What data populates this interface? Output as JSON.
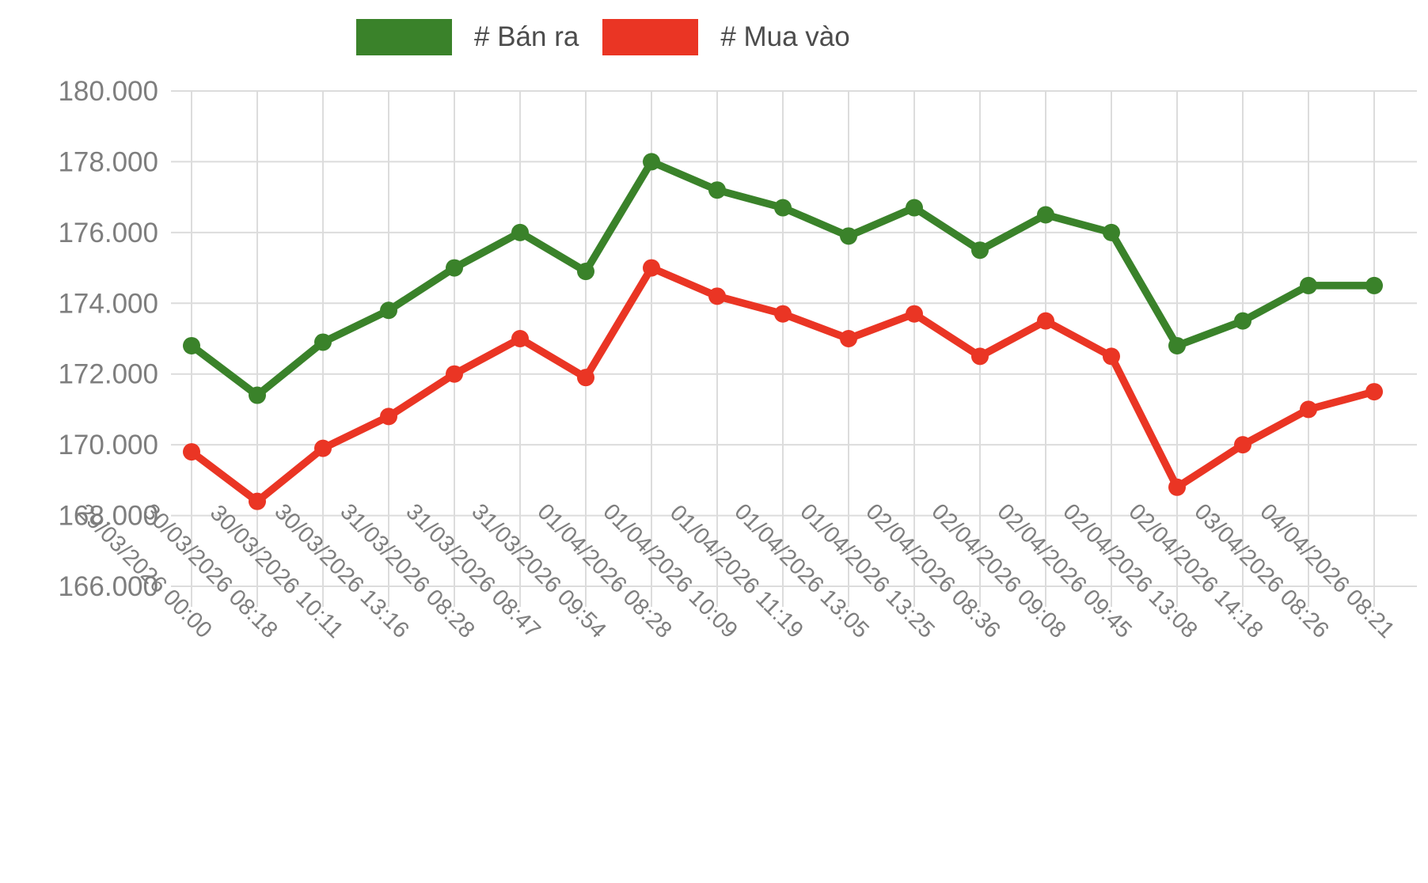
{
  "chart_data": {
    "type": "line",
    "title": "",
    "legend_position": "top",
    "grid": true,
    "categories": [
      "29/03/2026 00:00",
      "30/03/2026 08:18",
      "30/03/2026 10:11",
      "30/03/2026 13:16",
      "31/03/2026 08:28",
      "31/03/2026 08:47",
      "31/03/2026 09:54",
      "01/04/2026 08:28",
      "01/04/2026 10:09",
      "01/04/2026 11:19",
      "01/04/2026 13:05",
      "01/04/2026 13:25",
      "02/04/2026 08:36",
      "02/04/2026 09:08",
      "02/04/2026 09:45",
      "02/04/2026 13:08",
      "02/04/2026 14:18",
      "03/04/2026 08:26",
      "04/04/2026 08:21"
    ],
    "series": [
      {
        "name": "# Bán ra",
        "color": "#3a822a",
        "values": [
          172800,
          171400,
          172900,
          173800,
          175000,
          176000,
          174900,
          178000,
          177200,
          176700,
          175900,
          176700,
          175500,
          176500,
          176000,
          172800,
          173500,
          174500,
          174500
        ]
      },
      {
        "name": "# Mua vào",
        "color": "#ea3524",
        "values": [
          169800,
          168400,
          169900,
          170800,
          172000,
          173000,
          171900,
          175000,
          174200,
          173700,
          173000,
          173700,
          172500,
          173500,
          172500,
          168800,
          170000,
          171000,
          171500
        ]
      }
    ],
    "y_axis": {
      "min": 166000,
      "max": 180000,
      "step": 2000,
      "tick_labels": [
        "180.000",
        "178.000",
        "176.000",
        "174.000",
        "172.000",
        "170.000",
        "168.000",
        "166.000"
      ]
    },
    "colors": {
      "grid": "#dcdcdc",
      "axis_text": "#7e7e7e",
      "legend_text": "#4c4c4c",
      "background": "#ffffff"
    }
  }
}
